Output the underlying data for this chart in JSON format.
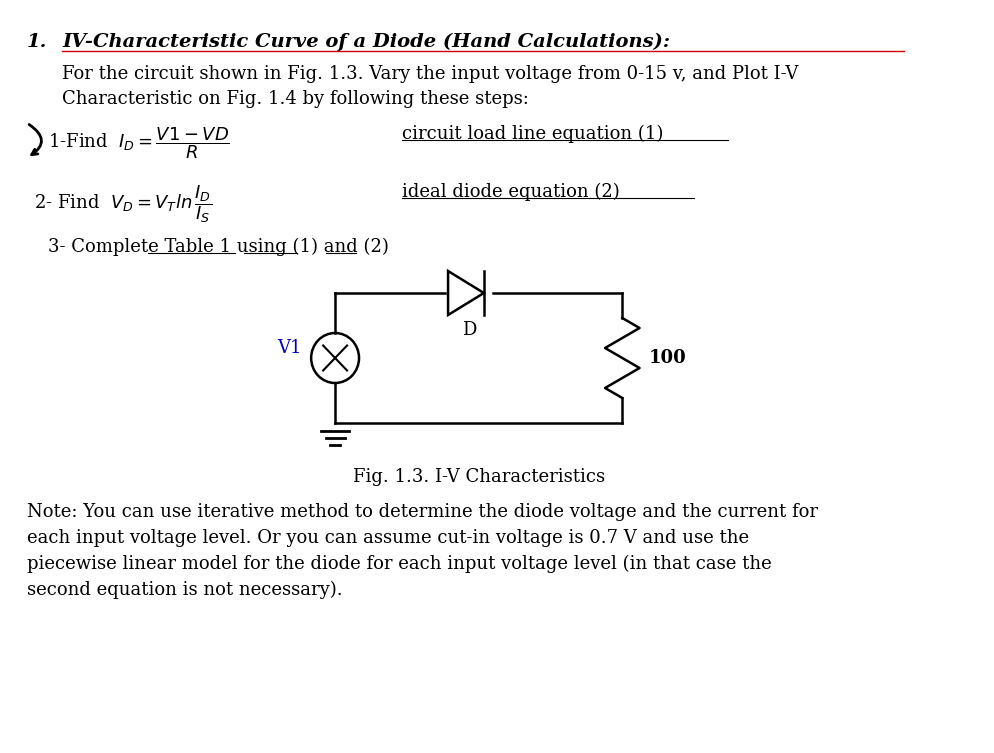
{
  "background_color": "#ffffff",
  "title_number": "1.",
  "title_text": "IV-Characteristic Curve of a Diode (Hand Calculations):",
  "para1": "For the circuit shown in Fig. 1.3. Vary the input voltage from 0-15 v, and Plot I-V\nCharacteristic on Fig. 1.4 by following these steps:",
  "step1_right": "circuit load line equation (1)",
  "step2_right": "ideal diode equation (2)",
  "step3": "3- Complete Table 1 using (1) and (2)",
  "fig_caption": "Fig. 1.3. I-V Characteristics",
  "note_text": "Note: You can use iterative method to determine the diode voltage and the current for\neach input voltage level. Or you can assume cut-in voltage is 0.7 V and use the\npiecewise linear model for the diode for each input voltage level (in that case the\nsecond equation is not necessary).",
  "label_V1": "V1",
  "label_D": "D",
  "label_100": "100",
  "font_size_title": 14,
  "font_size_body": 13,
  "font_size_note": 13,
  "text_color": "#000000",
  "v1_color": "#0000bb",
  "red_underline_color": "#cc0000"
}
